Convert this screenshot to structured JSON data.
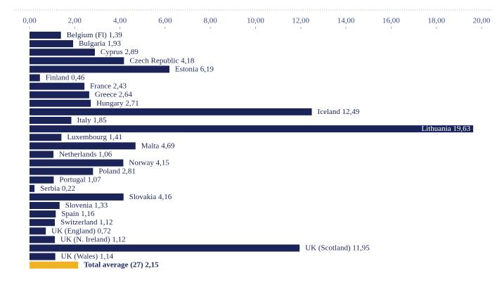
{
  "chart_data": {
    "type": "hbar",
    "categories": [
      "Belgium (Fl)",
      "Bulgaria",
      "Cyprus",
      "Czech Republic",
      "Estonia",
      "Finland",
      "France",
      "Greece",
      "Hungary",
      "Iceland",
      "Italy",
      "Lithuania",
      "Luxembourg",
      "Malta",
      "Netherlands",
      "Norway",
      "Poland",
      "Portugal",
      "Serbia",
      "Slovakia",
      "Slovenia",
      "Spain",
      "Switzerland",
      "UK (England)",
      "UK (N. Ireland)",
      "UK (Scotland)",
      "UK (Wales)",
      "Total average (27)"
    ],
    "values": [
      1.39,
      1.93,
      2.89,
      4.18,
      6.19,
      0.46,
      2.43,
      2.64,
      2.71,
      12.49,
      1.85,
      19.63,
      1.41,
      4.69,
      1.06,
      4.15,
      2.81,
      1.07,
      0.22,
      4.16,
      1.33,
      1.16,
      1.12,
      0.72,
      1.12,
      11.95,
      1.14,
      2.15
    ],
    "value_labels": [
      "1,39",
      "1,93",
      "2,89",
      "4,18",
      "6,19",
      "0,46",
      "2,43",
      "2,64",
      "2,71",
      "12,49",
      "1,85",
      "19,63",
      "1,41",
      "4,69",
      "1,06",
      "4,15",
      "2,81",
      "1,07",
      "0,22",
      "4,16",
      "1,33",
      "1,16",
      "1,12",
      "0,72",
      "1,12",
      "11,95",
      "1,14",
      "2,15"
    ],
    "colors": [
      "#1b2458",
      "#1b2458",
      "#1b2458",
      "#1b2458",
      "#1b2458",
      "#1b2458",
      "#1b2458",
      "#1b2458",
      "#1b2458",
      "#1b2458",
      "#1b2458",
      "#1b2458",
      "#1b2458",
      "#1b2458",
      "#1b2458",
      "#1b2458",
      "#1b2458",
      "#1b2458",
      "#1b2458",
      "#1b2458",
      "#1b2458",
      "#1b2458",
      "#1b2458",
      "#1b2458",
      "#1b2458",
      "#1b2458",
      "#1b2458",
      "#f0b323"
    ],
    "xlim": [
      0,
      20
    ],
    "xticks": [
      {
        "value": 0,
        "label": "0,00"
      },
      {
        "value": 2,
        "label": "2,00"
      },
      {
        "value": 4,
        "label": "4,00"
      },
      {
        "value": 6,
        "label": "6,00"
      },
      {
        "value": 8,
        "label": "8,00"
      },
      {
        "value": 10,
        "label": "10,00"
      },
      {
        "value": 12,
        "label": "12,00"
      },
      {
        "value": 14,
        "label": "14,00"
      },
      {
        "value": 16,
        "label": "16,00"
      },
      {
        "value": 18,
        "label": "18,00"
      },
      {
        "value": 20,
        "label": "20,00"
      }
    ],
    "grid": false
  }
}
